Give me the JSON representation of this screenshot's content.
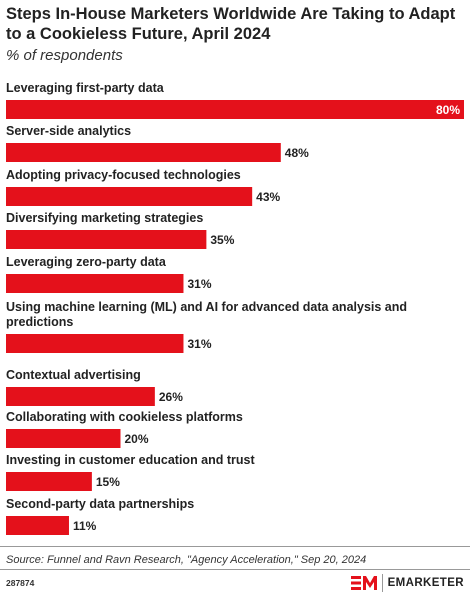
{
  "chart_data": {
    "type": "bar",
    "orientation": "horizontal",
    "title": "Steps In-House Marketers Worldwide Are Taking to Adapt to a Cookieless Future, April 2024",
    "subtitle": "% of respondents",
    "categories": [
      "Leveraging first-party data",
      "Server-side analytics",
      "Adopting privacy-focused technologies",
      "Diversifying marketing strategies",
      "Leveraging zero-party data",
      "Using machine learning (ML) and AI for advanced data analysis and predictions",
      "Contextual advertising",
      "Collaborating with cookieless platforms",
      "Investing in customer education and trust",
      "Second-party data partnerships"
    ],
    "values": [
      80,
      48,
      43,
      35,
      31,
      31,
      26,
      20,
      15,
      11
    ],
    "value_labels": [
      "80%",
      "48%",
      "43%",
      "35%",
      "31%",
      "31%",
      "26%",
      "20%",
      "15%",
      "11%"
    ],
    "xlim": [
      0,
      80
    ],
    "grid": false,
    "legend": "none",
    "bar_color": "#e4111b"
  },
  "source": "Source: Funnel and Ravn Research, \"Agency Acceleration,\" Sep 20, 2024",
  "chart_id": "287874",
  "brand": {
    "name": "EMARKETER",
    "accent_color": "#e4111b",
    "logo_icon": "em-logo-icon"
  }
}
